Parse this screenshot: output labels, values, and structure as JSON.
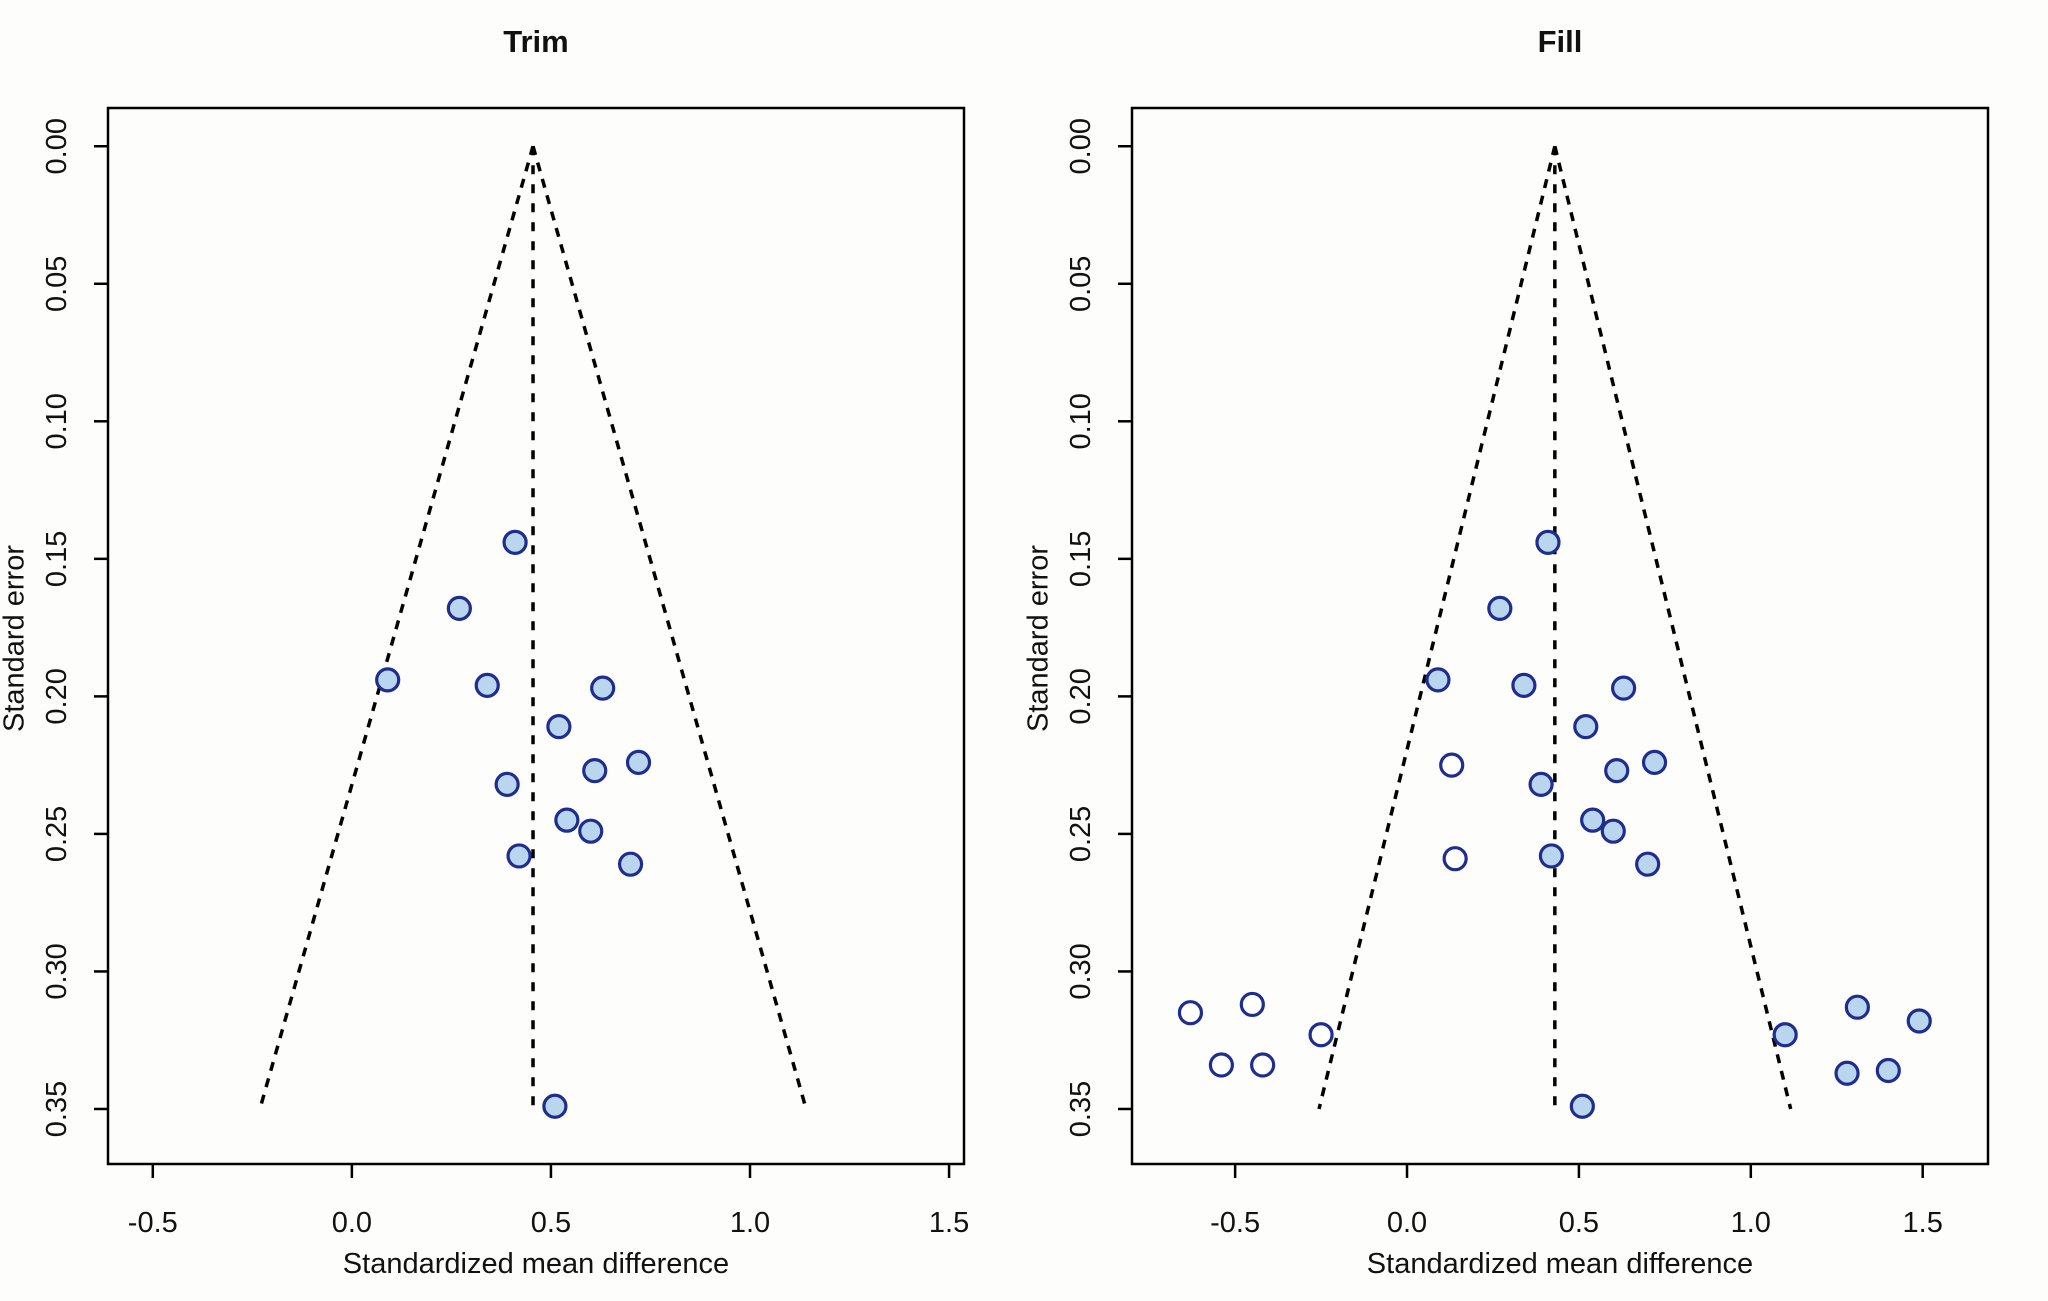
{
  "figure": {
    "background": "#fdfdfb",
    "text_color": "#111111",
    "axis_color": "#000000",
    "marker_fill": "#b9d6ee",
    "marker_fill_open": "#ffffff",
    "marker_stroke": "#1e2d8e",
    "funnel_line_color": "#000000"
  },
  "chart_data": [
    {
      "type": "scatter",
      "title": "Trim",
      "xlabel": "Standardized mean difference",
      "ylabel": "Standard error",
      "x_ticks": [
        -0.5,
        0.0,
        0.5,
        1.0,
        1.5
      ],
      "x_tick_labels": [
        "-0.5",
        "0.0",
        "0.5",
        "1.0",
        "1.5"
      ],
      "y_ticks": [
        0.0,
        0.05,
        0.1,
        0.15,
        0.2,
        0.25,
        0.3,
        0.35
      ],
      "y_tick_labels": [
        "0.00",
        "0.05",
        "0.10",
        "0.15",
        "0.20",
        "0.25",
        "0.30",
        "0.35"
      ],
      "xlim": [
        -0.6125,
        1.5375
      ],
      "ylim": [
        -0.0139,
        0.37
      ],
      "y_inverted": true,
      "grid": false,
      "legend": "none",
      "funnel": {
        "center": 0.455,
        "z": 1.96,
        "se_top": 0.0,
        "se_base": 0.35
      },
      "series": [
        {
          "name": "observed",
          "marker": "filled-circle",
          "points": [
            [
              0.41,
              0.144
            ],
            [
              0.27,
              0.168
            ],
            [
              0.09,
              0.194
            ],
            [
              0.34,
              0.196
            ],
            [
              0.63,
              0.197
            ],
            [
              0.52,
              0.211
            ],
            [
              0.61,
              0.227
            ],
            [
              0.72,
              0.224
            ],
            [
              0.39,
              0.232
            ],
            [
              0.54,
              0.245
            ],
            [
              0.6,
              0.249
            ],
            [
              0.42,
              0.258
            ],
            [
              0.7,
              0.261
            ],
            [
              0.51,
              0.349
            ]
          ]
        }
      ]
    },
    {
      "type": "scatter",
      "title": "Fill",
      "xlabel": "Standardized mean difference",
      "ylabel": "Standard error",
      "x_ticks": [
        -0.5,
        0.0,
        0.5,
        1.0,
        1.5
      ],
      "x_tick_labels": [
        "-0.5",
        "0.0",
        "0.5",
        "1.0",
        "1.5"
      ],
      "y_ticks": [
        0.0,
        0.05,
        0.1,
        0.15,
        0.2,
        0.25,
        0.3,
        0.35
      ],
      "y_tick_labels": [
        "0.00",
        "0.05",
        "0.10",
        "0.15",
        "0.20",
        "0.25",
        "0.30",
        "0.35"
      ],
      "xlim": [
        -0.8,
        1.69
      ],
      "ylim": [
        -0.0139,
        0.37
      ],
      "y_inverted": true,
      "grid": false,
      "legend": "none",
      "funnel": {
        "center": 0.43,
        "z": 1.96,
        "se_top": 0.0,
        "se_base": 0.35
      },
      "series": [
        {
          "name": "observed",
          "marker": "filled-circle",
          "points": [
            [
              0.41,
              0.144
            ],
            [
              0.27,
              0.168
            ],
            [
              0.09,
              0.194
            ],
            [
              0.34,
              0.196
            ],
            [
              0.63,
              0.197
            ],
            [
              0.52,
              0.211
            ],
            [
              0.61,
              0.227
            ],
            [
              0.72,
              0.224
            ],
            [
              0.39,
              0.232
            ],
            [
              0.54,
              0.245
            ],
            [
              0.6,
              0.249
            ],
            [
              0.42,
              0.258
            ],
            [
              0.7,
              0.261
            ],
            [
              0.51,
              0.349
            ],
            [
              1.1,
              0.323
            ],
            [
              1.31,
              0.313
            ],
            [
              1.28,
              0.337
            ],
            [
              1.4,
              0.336
            ],
            [
              1.49,
              0.318
            ]
          ]
        },
        {
          "name": "imputed",
          "marker": "open-circle",
          "points": [
            [
              0.13,
              0.225
            ],
            [
              0.14,
              0.259
            ],
            [
              -0.25,
              0.323
            ],
            [
              -0.45,
              0.312
            ],
            [
              -0.42,
              0.334
            ],
            [
              -0.54,
              0.334
            ],
            [
              -0.63,
              0.315
            ]
          ]
        }
      ]
    }
  ]
}
